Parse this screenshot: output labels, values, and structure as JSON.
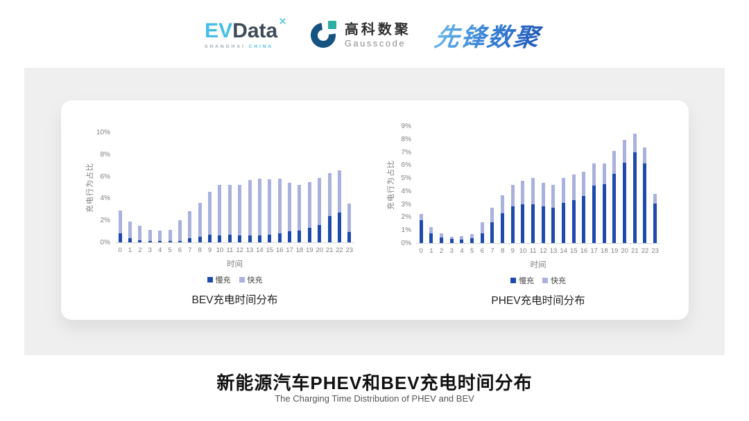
{
  "header": {
    "evdata": {
      "ev": "EV",
      "data": "Data",
      "mark": "✕",
      "sub_left": "SHANGHAI",
      "sub_right": "CHINA"
    },
    "gausscode": {
      "cn": "高科数聚",
      "en": "Gausscode"
    },
    "xianfeng": {
      "text": "先锋数聚"
    }
  },
  "footer": {
    "title": "新能源汽车PHEV和BEV充电时间分布",
    "subtitle": "The Charging Time Distribution of PHEV and BEV"
  },
  "colors": {
    "slow_charge": "#1D4AAB",
    "fast_charge": "#A9B1DC",
    "panel_bg": "#EFEFEF",
    "axis_text": "#7F7F7F",
    "evdata_cyan": "#44BEE8",
    "evdata_dark": "#3D4A57",
    "gauss_blue": "#175381",
    "gauss_teal": "#2BAFA3",
    "xianfeng_blue": "#2E6FD0"
  },
  "chart_data": [
    {
      "type": "bar",
      "stacked": true,
      "title": "BEV充电时间分布",
      "xlabel": "时间",
      "ylabel": "充电行为占比",
      "ylim": [
        0,
        10
      ],
      "ytick_step": 2,
      "ytick_suffix": "%",
      "grid": false,
      "legend_position": "bottom",
      "categories": [
        "0",
        "1",
        "2",
        "3",
        "4",
        "5",
        "6",
        "7",
        "8",
        "9",
        "10",
        "11",
        "12",
        "13",
        "14",
        "15",
        "16",
        "17",
        "18",
        "19",
        "20",
        "21",
        "22",
        "23"
      ],
      "series": [
        {
          "name": "慢充",
          "color": "#1D4AAB",
          "values": [
            0.8,
            0.35,
            0.2,
            0.1,
            0.1,
            0.1,
            0.15,
            0.35,
            0.5,
            0.7,
            0.65,
            0.7,
            0.6,
            0.6,
            0.65,
            0.7,
            0.85,
            1.0,
            1.1,
            1.3,
            1.6,
            2.4,
            2.7,
            0.95
          ]
        },
        {
          "name": "快充",
          "color": "#A9B1DC",
          "values": [
            2.1,
            1.55,
            1.3,
            1.05,
            1.0,
            1.05,
            1.85,
            2.45,
            3.1,
            3.9,
            4.55,
            4.5,
            4.6,
            5.05,
            5.15,
            5.05,
            4.95,
            4.4,
            4.15,
            4.2,
            4.25,
            3.9,
            3.85,
            2.55
          ]
        }
      ]
    },
    {
      "type": "bar",
      "stacked": true,
      "title": "PHEV充电时间分布",
      "xlabel": "时间",
      "ylabel": "充电行为占比",
      "ylim": [
        0,
        9
      ],
      "ytick_step": 1,
      "ytick_suffix": "%",
      "grid": false,
      "legend_position": "bottom",
      "categories": [
        "0",
        "1",
        "2",
        "3",
        "4",
        "5",
        "6",
        "7",
        "8",
        "9",
        "10",
        "11",
        "12",
        "13",
        "14",
        "15",
        "16",
        "17",
        "18",
        "19",
        "20",
        "21",
        "22",
        "23"
      ],
      "series": [
        {
          "name": "慢充",
          "color": "#1D4AAB",
          "values": [
            1.75,
            0.75,
            0.45,
            0.3,
            0.25,
            0.35,
            0.75,
            1.6,
            2.3,
            2.8,
            3.0,
            3.0,
            2.8,
            2.7,
            3.1,
            3.3,
            3.6,
            4.4,
            4.55,
            5.35,
            6.2,
            7.0,
            6.15,
            3.05
          ]
        },
        {
          "name": "快充",
          "color": "#A9B1DC",
          "values": [
            0.5,
            0.45,
            0.3,
            0.2,
            0.3,
            0.35,
            0.85,
            1.1,
            1.35,
            1.7,
            1.8,
            2.0,
            1.85,
            1.8,
            1.9,
            1.95,
            1.9,
            1.75,
            1.6,
            1.75,
            1.75,
            1.4,
            1.2,
            0.75
          ]
        }
      ]
    }
  ]
}
